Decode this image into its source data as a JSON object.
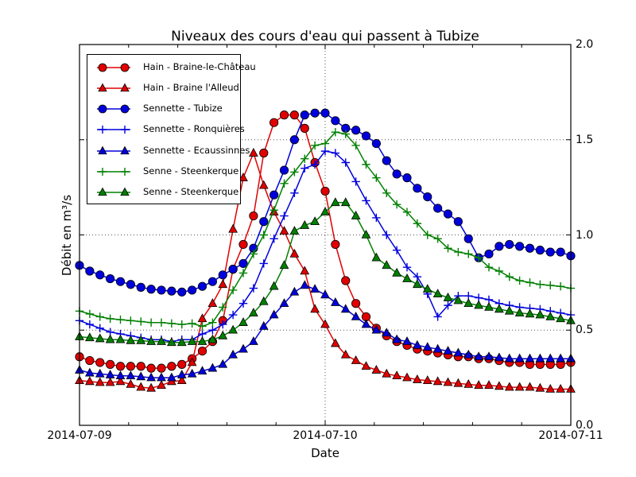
{
  "chart_data": {
    "type": "line",
    "title": "Niveaux des cours d'eau qui passent à Tubize",
    "xlabel": "Date",
    "ylabel": "Débit en m³/s",
    "x_tick_labels": [
      "2014-07-09",
      "2014-07-10",
      "2014-07-11"
    ],
    "y_tick_labels_top_to_bottom": [
      "2.0",
      "1.5",
      "1.0",
      "0.5",
      "0.0"
    ],
    "ylim": [
      0.0,
      2.0
    ],
    "x_unit": "hours since 2014-07-09 00:00",
    "x_step_hours": 1,
    "x_range_hours": [
      0,
      48
    ],
    "grid": "dotted horizontal at 0.5/1.0/1.5 and vertical at 2014-07-10",
    "legend_position": "upper left",
    "frame_color": "#000000",
    "background": "#ffffff",
    "series": [
      {
        "name": "Hain - Braine-le-Château",
        "color": "#e00000",
        "marker": "circle",
        "values": [
          0.36,
          0.34,
          0.33,
          0.32,
          0.31,
          0.31,
          0.31,
          0.3,
          0.3,
          0.31,
          0.32,
          0.35,
          0.39,
          0.44,
          0.55,
          0.82,
          0.95,
          1.1,
          1.43,
          1.59,
          1.63,
          1.63,
          1.56,
          1.38,
          1.23,
          0.95,
          0.76,
          0.64,
          0.57,
          0.51,
          0.47,
          0.44,
          0.42,
          0.4,
          0.39,
          0.38,
          0.37,
          0.36,
          0.36,
          0.35,
          0.35,
          0.34,
          0.33,
          0.33,
          0.32,
          0.32,
          0.32,
          0.32,
          0.33
        ]
      },
      {
        "name": "Hain - Braine l'Alleud",
        "color": "#e00000",
        "marker": "triangle",
        "values": [
          0.235,
          0.23,
          0.225,
          0.225,
          0.23,
          0.215,
          0.2,
          0.195,
          0.21,
          0.23,
          0.235,
          0.33,
          0.56,
          0.64,
          0.74,
          1.03,
          1.3,
          1.43,
          1.26,
          1.12,
          1.02,
          0.9,
          0.81,
          0.61,
          0.53,
          0.43,
          0.37,
          0.34,
          0.31,
          0.29,
          0.27,
          0.26,
          0.25,
          0.24,
          0.235,
          0.23,
          0.225,
          0.22,
          0.215,
          0.21,
          0.21,
          0.205,
          0.2,
          0.2,
          0.2,
          0.195,
          0.19,
          0.19,
          0.19
        ]
      },
      {
        "name": "Sennette - Tubize",
        "color": "#0000dd",
        "marker": "circle",
        "values": [
          0.84,
          0.81,
          0.79,
          0.77,
          0.755,
          0.74,
          0.725,
          0.715,
          0.71,
          0.705,
          0.7,
          0.71,
          0.73,
          0.755,
          0.79,
          0.82,
          0.85,
          0.93,
          1.07,
          1.21,
          1.34,
          1.5,
          1.63,
          1.64,
          1.64,
          1.6,
          1.56,
          1.55,
          1.52,
          1.48,
          1.39,
          1.32,
          1.3,
          1.245,
          1.2,
          1.14,
          1.11,
          1.07,
          0.98,
          0.88,
          0.9,
          0.94,
          0.95,
          0.94,
          0.93,
          0.92,
          0.91,
          0.91,
          0.89
        ]
      },
      {
        "name": "Sennette - Ronquières",
        "color": "#0000dd",
        "marker": "plus",
        "values": [
          0.55,
          0.53,
          0.51,
          0.49,
          0.48,
          0.47,
          0.46,
          0.45,
          0.45,
          0.44,
          0.45,
          0.45,
          0.48,
          0.5,
          0.53,
          0.58,
          0.64,
          0.72,
          0.85,
          0.98,
          1.1,
          1.22,
          1.35,
          1.37,
          1.44,
          1.43,
          1.38,
          1.28,
          1.18,
          1.09,
          1.0,
          0.92,
          0.83,
          0.78,
          0.69,
          0.57,
          0.63,
          0.68,
          0.68,
          0.67,
          0.66,
          0.64,
          0.63,
          0.62,
          0.615,
          0.61,
          0.6,
          0.59,
          0.58
        ]
      },
      {
        "name": "Sennette - Ecaussinnes",
        "color": "#0000dd",
        "marker": "triangle",
        "values": [
          0.29,
          0.275,
          0.27,
          0.265,
          0.26,
          0.26,
          0.255,
          0.25,
          0.25,
          0.25,
          0.265,
          0.27,
          0.285,
          0.3,
          0.32,
          0.37,
          0.4,
          0.44,
          0.52,
          0.58,
          0.64,
          0.7,
          0.735,
          0.715,
          0.685,
          0.645,
          0.61,
          0.57,
          0.53,
          0.5,
          0.485,
          0.45,
          0.44,
          0.42,
          0.41,
          0.4,
          0.39,
          0.38,
          0.37,
          0.36,
          0.36,
          0.355,
          0.35,
          0.35,
          0.35,
          0.35,
          0.35,
          0.35,
          0.35
        ]
      },
      {
        "name": "Senne - Steenkerque",
        "color": "#008000",
        "marker": "plus",
        "values": [
          0.6,
          0.585,
          0.57,
          0.56,
          0.555,
          0.55,
          0.545,
          0.54,
          0.54,
          0.535,
          0.53,
          0.535,
          0.52,
          0.54,
          0.62,
          0.71,
          0.8,
          0.9,
          1.0,
          1.13,
          1.27,
          1.33,
          1.4,
          1.47,
          1.48,
          1.54,
          1.53,
          1.47,
          1.37,
          1.3,
          1.22,
          1.16,
          1.12,
          1.06,
          1.0,
          0.98,
          0.93,
          0.91,
          0.9,
          0.88,
          0.83,
          0.81,
          0.78,
          0.76,
          0.75,
          0.74,
          0.735,
          0.73,
          0.72
        ]
      },
      {
        "name": "Senne - Steenkerque",
        "color": "#008000",
        "marker": "triangle",
        "values": [
          0.465,
          0.46,
          0.455,
          0.45,
          0.45,
          0.445,
          0.445,
          0.44,
          0.44,
          0.435,
          0.435,
          0.44,
          0.44,
          0.45,
          0.47,
          0.5,
          0.54,
          0.59,
          0.65,
          0.73,
          0.84,
          1.02,
          1.05,
          1.07,
          1.12,
          1.17,
          1.17,
          1.1,
          1.0,
          0.88,
          0.84,
          0.8,
          0.77,
          0.74,
          0.715,
          0.69,
          0.67,
          0.655,
          0.64,
          0.63,
          0.62,
          0.61,
          0.6,
          0.59,
          0.585,
          0.58,
          0.57,
          0.56,
          0.55
        ]
      }
    ]
  }
}
